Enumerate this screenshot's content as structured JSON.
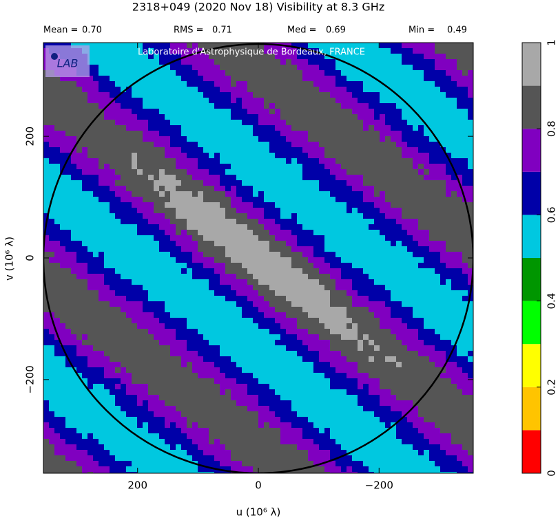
{
  "chart_data": {
    "type": "contour",
    "title": "2318+049   (2020 Nov 18)   Visibility at  8.3 GHz",
    "stats": [
      {
        "name": "Mean =",
        "value": 0.7,
        "label": "0.70"
      },
      {
        "name": "RMS =",
        "value": 0.71,
        "label": "0.71"
      },
      {
        "name": "Med =",
        "value": 0.69,
        "label": "0.69"
      },
      {
        "name": "Min =",
        "value": 0.49,
        "label": "0.49"
      }
    ],
    "annotation": "Laboratoire d'Astrophysique de Bordeaux, FRANCE",
    "logo_text": "LAB",
    "xlabel": "u  (10⁶ λ)",
    "ylabel": "v  (10⁶ λ)",
    "xlim": [
      356,
      -356
    ],
    "ylim": [
      -354,
      354
    ],
    "xticks": [
      200,
      0,
      {
        "value": -200,
        "label": "−200"
      }
    ],
    "yticks": [
      {
        "value": -200,
        "label": "−200"
      },
      0,
      200
    ],
    "colorbar": {
      "bounds": [
        0,
        0.1,
        0.2,
        0.3,
        0.4,
        0.5,
        0.6,
        0.7,
        0.8,
        0.9,
        1
      ],
      "colors": [
        "#ff0000",
        "#ffc400",
        "#ffff00",
        "#00ff00",
        "#009600",
        "#00c8e0",
        "#0000a8",
        "#8000c0",
        "#555555",
        "#a8a8a8"
      ],
      "ticks": [
        0,
        0.2,
        0.4,
        0.6,
        0.8,
        1
      ]
    }
  }
}
